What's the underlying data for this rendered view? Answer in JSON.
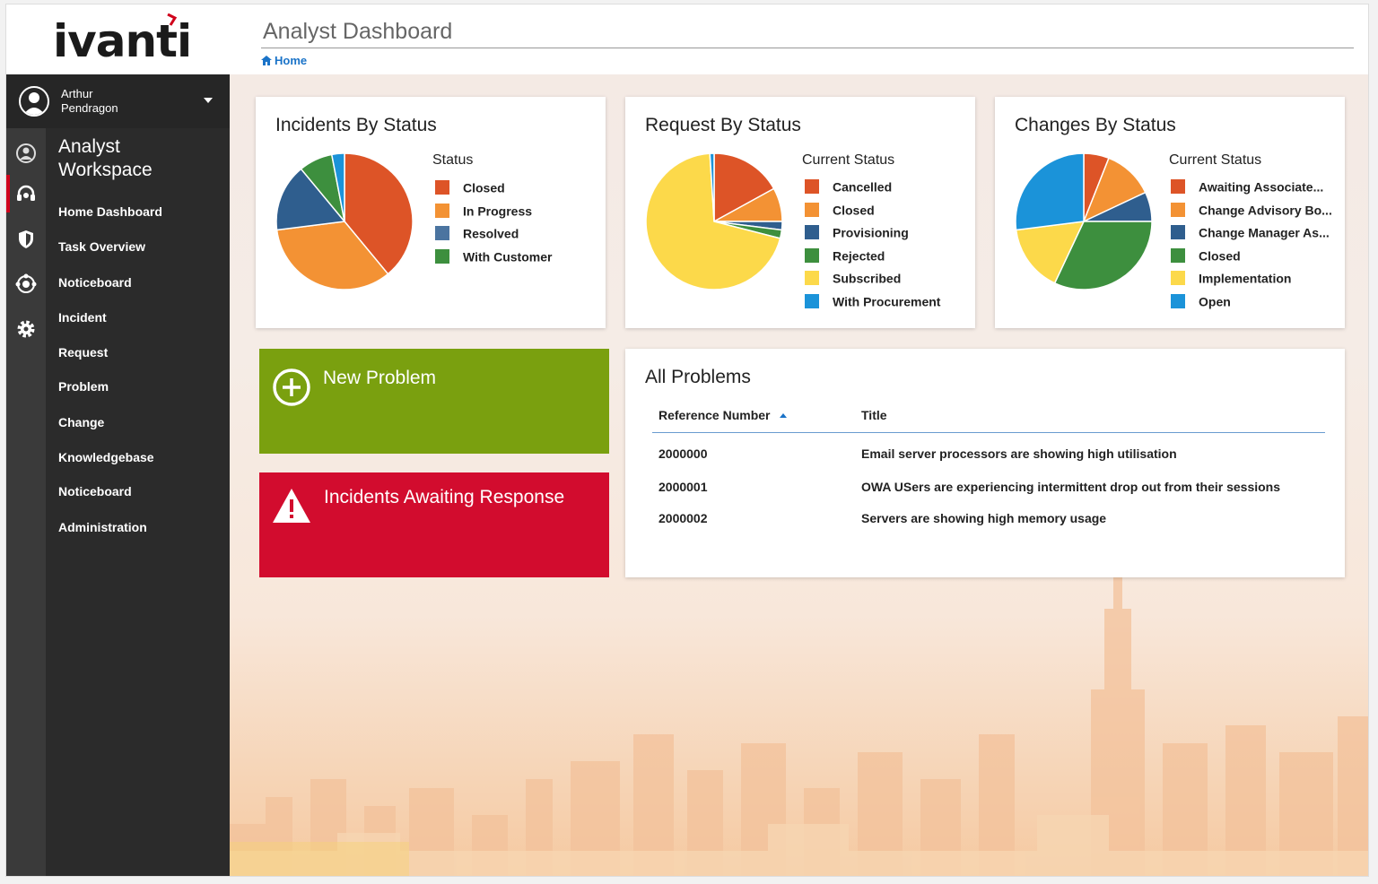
{
  "app": {
    "logo_text": "ivanti"
  },
  "user": {
    "name_line1": "Arthur",
    "name_line2": "Pendragon"
  },
  "sidebar": {
    "workspace_line1": "Analyst",
    "workspace_line2": "Workspace",
    "items": [
      {
        "label": "Home Dashboard"
      },
      {
        "label": "Task Overview"
      },
      {
        "label": "Noticeboard"
      },
      {
        "label": "Incident"
      },
      {
        "label": "Request"
      },
      {
        "label": "Problem"
      },
      {
        "label": "Change"
      },
      {
        "label": "Knowledgebase"
      },
      {
        "label": "Noticeboard"
      },
      {
        "label": "Administration"
      }
    ],
    "rail_icons": [
      "user-circle-icon",
      "headset-icon",
      "shield-icon",
      "network-icon",
      "gear-icon"
    ]
  },
  "header": {
    "title": "Analyst Dashboard",
    "breadcrumb": "Home"
  },
  "colors": {
    "accent_red": "#d0021b",
    "green_tile": "#7aa00f",
    "red_tile": "#d20c2e",
    "breadcrumb_blue": "#1a73c8"
  },
  "chart_data": [
    {
      "type": "pie",
      "title": "Incidents By Status",
      "legend_title": "Status",
      "legend_placement": "right",
      "categories": [
        "Closed",
        "In Progress",
        "Resolved",
        "With Customer"
      ],
      "values": [
        39,
        34,
        16,
        8
      ],
      "extra_slice": 3,
      "colors": [
        "#dd5427",
        "#f39234",
        "#2f5e8e",
        "#3d8f3e",
        "#1b93d9"
      ]
    },
    {
      "type": "pie",
      "title": "Request By Status",
      "legend_title": "Current Status",
      "legend_placement": "right",
      "categories": [
        "Cancelled",
        "Closed",
        "Provisioning",
        "Rejected",
        "Subscribed",
        "With Procurement"
      ],
      "values": [
        17,
        8,
        2,
        2,
        70,
        1
      ],
      "colors": [
        "#dd5427",
        "#f39234",
        "#2f5e8e",
        "#3d8f3e",
        "#fcd94a",
        "#1b93d9"
      ]
    },
    {
      "type": "pie",
      "title": "Changes By Status",
      "legend_title": "Current Status",
      "legend_placement": "right",
      "categories": [
        "Awaiting Associate...",
        "Change Advisory Bo...",
        "Change Manager As...",
        "Closed",
        "Implementation",
        "Open"
      ],
      "values": [
        6,
        12,
        7,
        32,
        16,
        27
      ],
      "colors": [
        "#dd5427",
        "#f39234",
        "#2f5e8e",
        "#3d8f3e",
        "#fcd94a",
        "#1b93d9"
      ]
    }
  ],
  "tiles": {
    "new_problem": "New Problem",
    "incidents_awaiting": "Incidents Awaiting Response"
  },
  "problems": {
    "title": "All Problems",
    "columns": [
      "Reference Number",
      "Title"
    ],
    "rows": [
      {
        "ref": "2000000",
        "title": "Email server processors are showing high utilisation"
      },
      {
        "ref": "2000001",
        "title": "OWA USers are experiencing intermittent drop out from their sessions"
      },
      {
        "ref": "2000002",
        "title": "Servers are showing high memory usage"
      }
    ]
  }
}
